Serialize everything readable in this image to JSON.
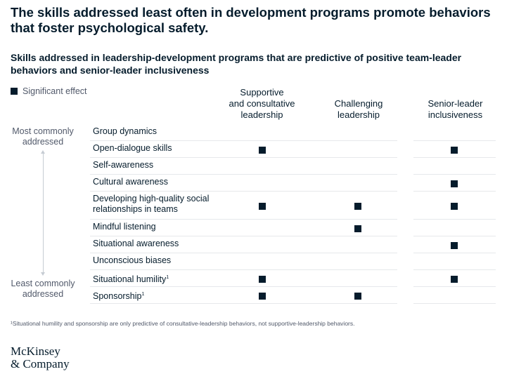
{
  "headline": "The skills addressed least often in development programs promote behaviors that foster psychological safety.",
  "chart_data": {
    "type": "table",
    "title": "Skills addressed in leadership-development programs that are predictive of positive team-leader behaviors and senior-leader inclusiveness",
    "legend": "Significant effect",
    "columns": [
      "Supportive\nand consultative\nleadership",
      "Challenging\nleadership",
      "Senior-leader\ninclusiveness"
    ],
    "axis": {
      "top_label": "Most commonly\naddressed",
      "bottom_label": "Least commonly\naddressed"
    },
    "rows": [
      {
        "label": "Group dynamics",
        "sup": "",
        "effects": [
          false,
          false,
          false
        ]
      },
      {
        "label": "Open-dialogue skills",
        "sup": "",
        "effects": [
          true,
          false,
          true
        ]
      },
      {
        "label": "Self-awareness",
        "sup": "",
        "effects": [
          false,
          false,
          false
        ]
      },
      {
        "label": "Cultural awareness",
        "sup": "",
        "effects": [
          false,
          false,
          true
        ]
      },
      {
        "label": "Developing high-quality social relationships in teams",
        "sup": "",
        "effects": [
          true,
          true,
          true
        ]
      },
      {
        "label": "Mindful listening",
        "sup": "",
        "effects": [
          false,
          true,
          false
        ]
      },
      {
        "label": "Situational awareness",
        "sup": "",
        "effects": [
          false,
          false,
          true
        ]
      },
      {
        "label": "Unconscious biases",
        "sup": "",
        "effects": [
          false,
          false,
          false
        ]
      },
      {
        "label": "Situational humility",
        "sup": "1",
        "effects": [
          true,
          false,
          true
        ]
      },
      {
        "label": "Sponsorship",
        "sup": "1",
        "effects": [
          true,
          true,
          false
        ]
      }
    ]
  },
  "footnote": "¹Situational humility and sponsorship are only predictive of consultative-leadership behaviors, not supportive-leadership behaviors.",
  "logo": {
    "line1": "McKinsey",
    "line2": "& Company"
  },
  "colors": {
    "mark": "#051c2c",
    "divider": "#e6e8eb",
    "text": "#051c2c",
    "muted": "#51596a"
  }
}
